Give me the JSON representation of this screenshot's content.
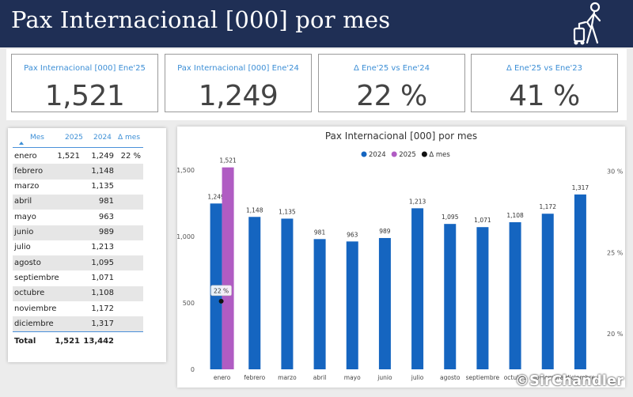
{
  "header": {
    "title": "Pax Internacional [000] por mes",
    "icon": "traveler-with-suitcase-icon"
  },
  "kpis": [
    {
      "label": "Pax Internacional [000] Ene'25",
      "value": "1,521"
    },
    {
      "label": "Pax Internacional [000] Ene'24",
      "value": "1,249"
    },
    {
      "label": "Δ Ene'25 vs Ene'24",
      "value": "22 %"
    },
    {
      "label": "Δ Ene'25 vs Ene'23",
      "value": "41 %"
    }
  ],
  "table": {
    "headers": {
      "mes": "Mes",
      "y2025": "2025",
      "y2024": "2024",
      "delta": "Δ mes"
    },
    "rows": [
      {
        "mes": "enero",
        "y2025": "1,521",
        "y2024": "1,249",
        "delta": "22 %"
      },
      {
        "mes": "febrero",
        "y2025": "",
        "y2024": "1,148",
        "delta": ""
      },
      {
        "mes": "marzo",
        "y2025": "",
        "y2024": "1,135",
        "delta": ""
      },
      {
        "mes": "abril",
        "y2025": "",
        "y2024": "981",
        "delta": ""
      },
      {
        "mes": "mayo",
        "y2025": "",
        "y2024": "963",
        "delta": ""
      },
      {
        "mes": "junio",
        "y2025": "",
        "y2024": "989",
        "delta": ""
      },
      {
        "mes": "julio",
        "y2025": "",
        "y2024": "1,213",
        "delta": ""
      },
      {
        "mes": "agosto",
        "y2025": "",
        "y2024": "1,095",
        "delta": ""
      },
      {
        "mes": "septiembre",
        "y2025": "",
        "y2024": "1,071",
        "delta": ""
      },
      {
        "mes": "octubre",
        "y2025": "",
        "y2024": "1,108",
        "delta": ""
      },
      {
        "mes": "noviembre",
        "y2025": "",
        "y2024": "1,172",
        "delta": ""
      },
      {
        "mes": "diciembre",
        "y2025": "",
        "y2024": "1,317",
        "delta": ""
      }
    ],
    "total": {
      "label": "Total",
      "y2025": "1,521",
      "y2024": "13,442"
    }
  },
  "chart_data": {
    "type": "bar",
    "title": "Pax Internacional [000] por mes",
    "categories": [
      "enero",
      "febrero",
      "marzo",
      "abril",
      "mayo",
      "junio",
      "julio",
      "agosto",
      "septiembre",
      "octubre",
      "noviembre",
      "diciembre"
    ],
    "series": [
      {
        "name": "2024",
        "color": "#1565c0",
        "values": [
          1249,
          1148,
          1135,
          981,
          963,
          989,
          1213,
          1095,
          1071,
          1108,
          1172,
          1317
        ],
        "labels": [
          "1,249",
          "1,148",
          "1,135",
          "981",
          "963",
          "989",
          "1,213",
          "1,095",
          "1,071",
          "1,108",
          "1,172",
          "1,317"
        ]
      },
      {
        "name": "2025",
        "color": "#b05cc3",
        "values": [
          1521,
          null,
          null,
          null,
          null,
          null,
          null,
          null,
          null,
          null,
          null,
          null
        ],
        "labels": [
          "1,521"
        ]
      },
      {
        "name": "Δ mes",
        "color": "#111111",
        "type": "scatter",
        "axis": "right",
        "values": [
          22,
          null,
          null,
          null,
          null,
          null,
          null,
          null,
          null,
          null,
          null,
          null
        ],
        "labels": [
          "22 %"
        ]
      }
    ],
    "ylim": [
      0,
      1650
    ],
    "yticks": [
      0,
      500,
      1000,
      1500
    ],
    "ytick_labels": [
      "0",
      "500",
      "1,000",
      "1,500"
    ],
    "y2lim": [
      17.8,
      31.3
    ],
    "y2ticks": [
      20,
      25,
      30
    ],
    "y2tick_labels": [
      "20 %",
      "25 %",
      "30 %"
    ],
    "legend": "top-center",
    "grid": false
  },
  "watermark": "©SirChandler"
}
